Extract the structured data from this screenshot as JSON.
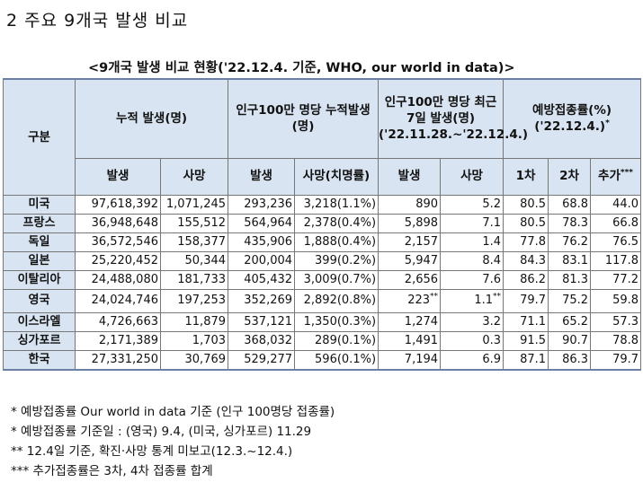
{
  "heading": "2  주요 9개국 발생 비교",
  "caption": "<9개국 발생 비교 현황('22.12.4. 기준, WHO, our world in data)>",
  "header": {
    "group": "구분",
    "cumulative": "누적 발생(명)",
    "per_million": "인구100만 명당 누적발생(명)",
    "recent7": "인구100만 명당 최근 7일 발생(명) ('22.11.28.~'22.12.4.)",
    "vaccine": "예방접종률(%) ('22.12.4.)",
    "vaccine_mark": "*",
    "sub": [
      "발생",
      "사망",
      "발생",
      "사망(치명률)",
      "발생",
      "사망",
      "1차",
      "2차",
      "추가"
    ],
    "booster_mark": "***"
  },
  "rows": [
    {
      "name": "미국",
      "cases": "97,618,392",
      "deaths": "1,071,245",
      "pm_cases": "293,236",
      "pm_deaths": "3,218(1.1%)",
      "w_cases": "890",
      "w_cases_mark": "",
      "w_deaths": "5.2",
      "w_deaths_mark": "",
      "d1": "80.5",
      "d2": "68.8",
      "boost": "44.0"
    },
    {
      "name": "프랑스",
      "cases": "36,948,648",
      "deaths": "155,512",
      "pm_cases": "564,964",
      "pm_deaths": "2,378(0.4%)",
      "w_cases": "5,898",
      "w_cases_mark": "",
      "w_deaths": "7.1",
      "w_deaths_mark": "",
      "d1": "80.5",
      "d2": "78.3",
      "boost": "66.8"
    },
    {
      "name": "독일",
      "cases": "36,572,546",
      "deaths": "158,377",
      "pm_cases": "435,906",
      "pm_deaths": "1,888(0.4%)",
      "w_cases": "2,157",
      "w_cases_mark": "",
      "w_deaths": "1.4",
      "w_deaths_mark": "",
      "d1": "77.8",
      "d2": "76.2",
      "boost": "76.5"
    },
    {
      "name": "일본",
      "cases": "25,220,452",
      "deaths": "50,344",
      "pm_cases": "200,004",
      "pm_deaths": "399(0.2%)",
      "w_cases": "5,947",
      "w_cases_mark": "",
      "w_deaths": "8.4",
      "w_deaths_mark": "",
      "d1": "84.3",
      "d2": "83.1",
      "boost": "117.8"
    },
    {
      "name": "이탈리아",
      "cases": "24,488,080",
      "deaths": "181,733",
      "pm_cases": "405,432",
      "pm_deaths": "3,009(0.7%)",
      "w_cases": "2,656",
      "w_cases_mark": "",
      "w_deaths": "7.6",
      "w_deaths_mark": "",
      "d1": "86.2",
      "d2": "81.3",
      "boost": "77.2"
    },
    {
      "name": "영국",
      "cases": "24,024,746",
      "deaths": "197,253",
      "pm_cases": "352,269",
      "pm_deaths": "2,892(0.8%)",
      "w_cases": "223",
      "w_cases_mark": "**",
      "w_deaths": "1.1",
      "w_deaths_mark": "**",
      "d1": "79.7",
      "d2": "75.2",
      "boost": "59.8"
    },
    {
      "name": "이스라엘",
      "cases": "4,726,663",
      "deaths": "11,879",
      "pm_cases": "537,121",
      "pm_deaths": "1,350(0.3%)",
      "w_cases": "1,274",
      "w_cases_mark": "",
      "w_deaths": "3.2",
      "w_deaths_mark": "",
      "d1": "71.1",
      "d2": "65.2",
      "boost": "57.3"
    },
    {
      "name": "싱가포르",
      "cases": "2,171,389",
      "deaths": "1,703",
      "pm_cases": "368,032",
      "pm_deaths": "289(0.1%)",
      "w_cases": "1,491",
      "w_cases_mark": "",
      "w_deaths": "0.3",
      "w_deaths_mark": "",
      "d1": "91.5",
      "d2": "90.7",
      "boost": "78.8"
    },
    {
      "name": "한국",
      "cases": "27,331,250",
      "deaths": "30,769",
      "pm_cases": "529,277",
      "pm_deaths": "596(0.1%)",
      "w_cases": "7,194",
      "w_cases_mark": "",
      "w_deaths": "6.9",
      "w_deaths_mark": "",
      "d1": "87.1",
      "d2": "86.3",
      "boost": "79.7"
    }
  ],
  "notes": [
    " * 예방접종률 Our world in data 기준 (인구 100명당 접종률)",
    " * 예방접종률 기준일 : (영국) 9.4, (미국, 싱가포르) 11.29",
    "** 12.4일 기준, 확진·사망 통계 미보고(12.3.~12.4.)",
    "*** 추가접종률은 3차, 4차 접종률 합계"
  ]
}
